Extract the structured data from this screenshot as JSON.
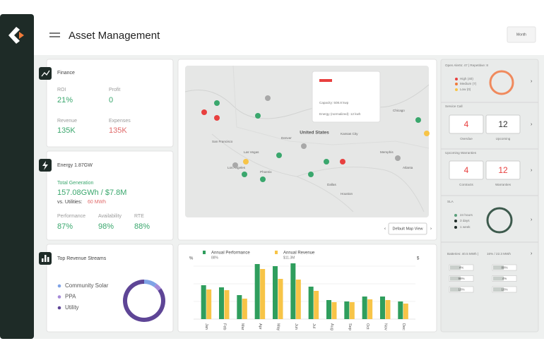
{
  "header": {
    "title": "Asset Management",
    "button": "Month"
  },
  "finance": {
    "title": "Finance",
    "items": [
      {
        "label": "ROI",
        "value": "21%"
      },
      {
        "label": "Profit",
        "value": "0"
      },
      {
        "label": "Revenue",
        "value": "135K"
      },
      {
        "label": "Expenses",
        "value": "135K"
      }
    ]
  },
  "energy": {
    "title": "Energy 1.87GW",
    "total_label": "Total Generation",
    "total": "157.08GWh / $7.8M",
    "utilities_label": "vs. Utilities:",
    "utilities": "60 MWh",
    "items": [
      {
        "label": "Performance",
        "value": "87%"
      },
      {
        "label": "Availability",
        "value": "98%"
      },
      {
        "label": "RTE",
        "value": "88%"
      }
    ]
  },
  "map": {
    "country": "United States",
    "cities": [
      "San Francisco",
      "Los Angeles",
      "Las Vegas",
      "Phoenix",
      "Denver",
      "Kansas City",
      "Dallas",
      "Houston",
      "Chicago",
      "Memphis",
      "Atlanta"
    ],
    "popup": {
      "capacity": "Capacity: 508.8 kwp",
      "energy": "Energy (normalized): 12 kwh"
    },
    "button": "Default Map View"
  },
  "chart_data": [
    {
      "type": "pie",
      "title": "Top Revenue Streams",
      "categories": [
        "Community Solar",
        "PPA",
        "Utility"
      ],
      "values": [
        10,
        5,
        85
      ],
      "colors": [
        "#7fa3e6",
        "#a58ad8",
        "#5e4596"
      ]
    },
    {
      "type": "bar",
      "y_label": "%",
      "y2_label": "$",
      "ylim": [
        0,
        100
      ],
      "categories": [
        "Jan",
        "Feb",
        "Mar",
        "Apr",
        "May",
        "Jun",
        "Jul",
        "Aug",
        "Sep",
        "Oct",
        "Nov",
        "Dec"
      ],
      "series": [
        {
          "name": "Annual Performance",
          "total": "88%",
          "color": "#2f9e5d",
          "values": [
            48,
            45,
            34,
            78,
            75,
            79,
            46,
            27,
            25,
            32,
            32,
            25
          ]
        },
        {
          "name": "Annual Revenue",
          "total": "$11.3M",
          "color": "#f7c447",
          "values": [
            42,
            41,
            29,
            71,
            57,
            56,
            40,
            24,
            24,
            28,
            27,
            22
          ]
        }
      ]
    }
  ],
  "alerts": {
    "title": "Open Alerts: 47 | Repetitive: 8",
    "items": [
      "High (40)",
      "Medium (7)",
      "Low (0)"
    ]
  },
  "service": {
    "title": "Service Call",
    "cards": [
      {
        "value": "4",
        "label": "Overdue"
      },
      {
        "value": "12",
        "label": "Upcoming"
      }
    ]
  },
  "warranties": {
    "title": "Upcoming Warranties",
    "cards": [
      {
        "value": "4",
        "label": "Contracts"
      },
      {
        "value": "12",
        "label": "Warranties"
      }
    ]
  },
  "sla": {
    "title": "SLA",
    "items": [
      "24 hours",
      "3 days",
      "1 week"
    ]
  },
  "batteries": {
    "title": "Batteries: 40.5 MWh |",
    "title_alt": "16% / 22.3 MWh",
    "rows": [
      [
        "4%",
        "88%"
      ],
      [
        "96%",
        "4%"
      ],
      [
        "16%",
        "16%"
      ]
    ]
  }
}
